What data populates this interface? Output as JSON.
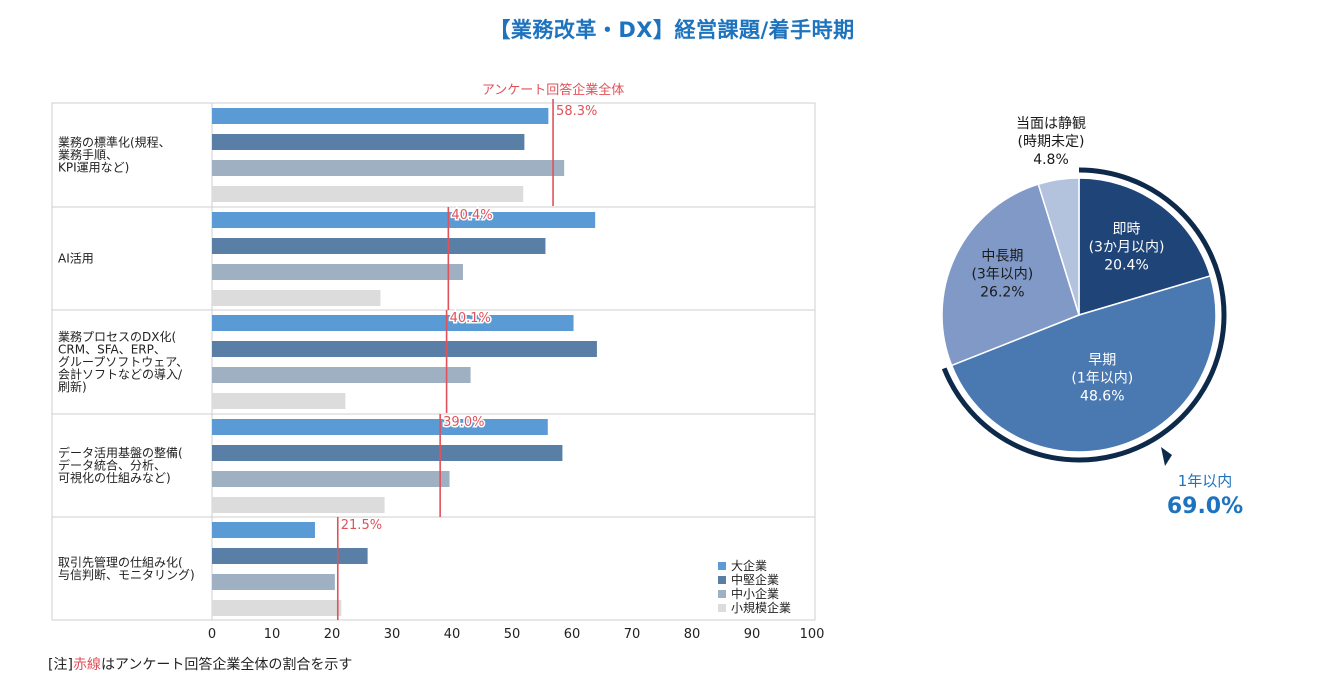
{
  "title": "【業務改革・DX】経営課題/着手時期",
  "footnote": {
    "prefix": "[注]",
    "highlight": "赤線",
    "suffix": "はアンケート回答企業全体の割合を示す"
  },
  "colors": {
    "title": "#1e73be",
    "large": "#5b9bd5",
    "midsize": "#5a7fa6",
    "small_medium": "#9fb0c2",
    "small": "#dcdcdc",
    "overall_line": "#e0525a",
    "pie_immediate": "#1f4477",
    "pie_early": "#4a78b0",
    "pie_midlong": "#8099c7",
    "pie_undecided": "#b3c3de",
    "pie_bracket": "#0e2a4a",
    "highlight_text": "#1e73be"
  },
  "chart_data": [
    {
      "type": "bar",
      "orientation": "horizontal",
      "categories": [
        [
          "業務の標準化(規程、",
          "業務手順、",
          "KPI運用など)"
        ],
        [
          "AI活用"
        ],
        [
          "業務プロセスのDX化(",
          "CRM、SFA、ERP、",
          "グループソフトウェア、",
          "会計ソフトなどの導入/",
          "刷新)"
        ],
        [
          "データ活用基盤の整備(",
          "データ統合、分析、",
          "可視化の仕組みなど)"
        ],
        [
          "取引先管理の仕組み化(",
          "与信判断、モニタリング)"
        ]
      ],
      "series": [
        {
          "name": "大企業",
          "values": [
            57.5,
            65.5,
            61.8,
            57.4,
            17.6
          ]
        },
        {
          "name": "中堅企業",
          "values": [
            53.4,
            57.0,
            65.8,
            59.9,
            26.6
          ]
        },
        {
          "name": "中小企業",
          "values": [
            60.2,
            42.9,
            44.2,
            40.6,
            21.0
          ]
        },
        {
          "name": "小規模企業",
          "values": [
            53.2,
            28.8,
            22.8,
            29.5,
            22.1
          ]
        }
      ],
      "overall": {
        "label": "アンケート回答企業全体",
        "values": [
          58.3,
          40.4,
          40.1,
          39.0,
          21.5
        ],
        "value_labels": [
          "58.3%",
          "40.4%",
          "40.1%",
          "39.0%",
          "21.5%"
        ]
      },
      "xlim": [
        0,
        100
      ],
      "xticks": [
        "0",
        "10",
        "20",
        "30",
        "40",
        "50",
        "60",
        "70",
        "80",
        "90",
        "100"
      ],
      "legend_position": "bottom-right"
    },
    {
      "type": "pie",
      "slices": [
        {
          "label": [
            "即時",
            "(3か月以内)"
          ],
          "value": 20.4,
          "value_label": "20.4%"
        },
        {
          "label": [
            "早期",
            "(1年以内)"
          ],
          "value": 48.6,
          "value_label": "48.6%"
        },
        {
          "label": [
            "中長期",
            "(3年以内)"
          ],
          "value": 26.2,
          "value_label": "26.2%"
        },
        {
          "label": [
            "当面は静観",
            "(時期未定)"
          ],
          "value": 4.8,
          "value_label": "4.8%"
        }
      ],
      "bracket": {
        "label": "1年以内",
        "value": 69.0,
        "value_label": "69.0%"
      }
    }
  ]
}
